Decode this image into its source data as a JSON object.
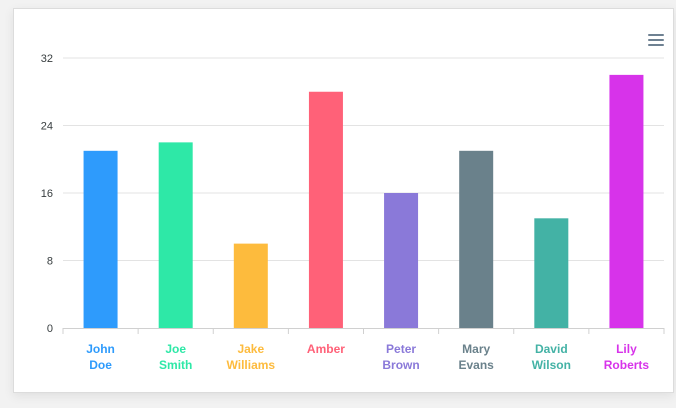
{
  "toolbar": {
    "menu_icon": "hamburger-menu-icon"
  },
  "chart_data": {
    "type": "bar",
    "categories": [
      [
        "John",
        "Doe"
      ],
      [
        "Joe",
        "Smith"
      ],
      [
        "Jake",
        "Williams"
      ],
      [
        "Amber"
      ],
      [
        "Peter",
        "Brown"
      ],
      [
        "Mary",
        "Evans"
      ],
      [
        "David",
        "Wilson"
      ],
      [
        "Lily",
        "Roberts"
      ]
    ],
    "values": [
      21,
      22,
      10,
      28,
      16,
      21,
      13,
      30
    ],
    "colors": [
      "#2e9bfc",
      "#2ee8a7",
      "#fdbb3d",
      "#ff6178",
      "#8a79d9",
      "#6a818b",
      "#43b2a5",
      "#d733ea"
    ],
    "yticks": [
      0,
      8,
      16,
      24,
      32
    ],
    "ylim": [
      0,
      32
    ],
    "grid": true,
    "legend": "none"
  }
}
